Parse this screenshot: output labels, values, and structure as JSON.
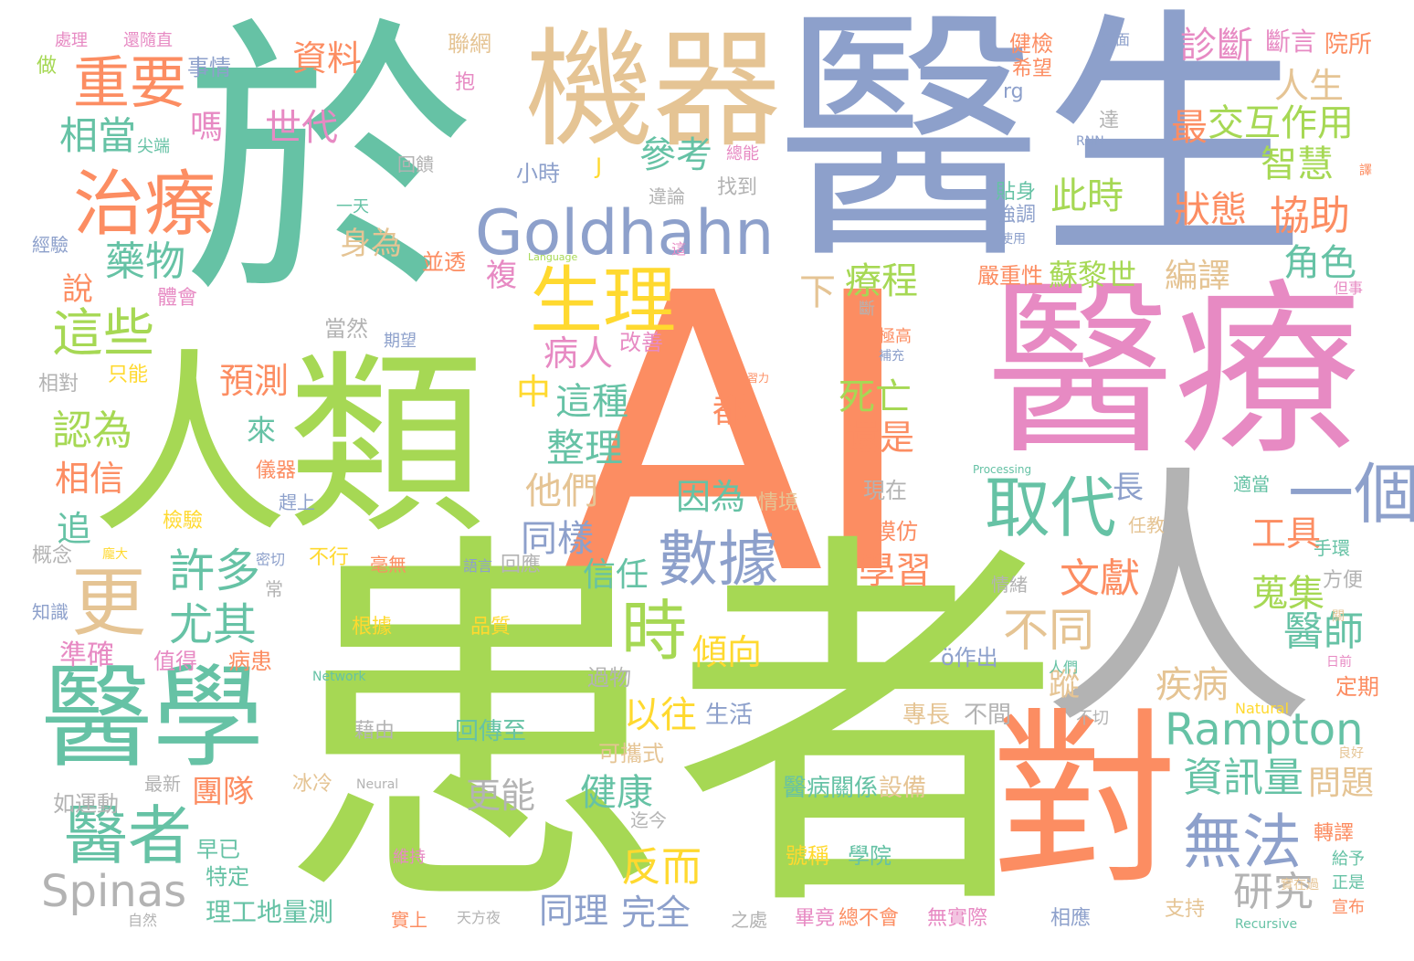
{
  "palette": {
    "teal": "#66c2a5",
    "orange": "#fc8d62",
    "blue": "#8da0cb",
    "pink": "#e78ac3",
    "green": "#a6d854",
    "yellow": "#ffd92f",
    "tan": "#e5c494",
    "gray": "#b3b3b3"
  },
  "words": {
    "ai": "AI",
    "huanzhe": "患者",
    "yu": "於",
    "yisheng": "醫生",
    "yiliao": "醫療",
    "renlei": "人類",
    "ren": "人",
    "jiqi": "機器",
    "yixue": "醫學",
    "dui": "對",
    "goldhahn": "Goldhahn",
    "rampton": "Rampton",
    "spinas": "Spinas",
    "zhiliao": "治療",
    "zhongyao": "重要",
    "shengli": "生理",
    "qudai": "取代",
    "shuju": "數據",
    "yige": "一個",
    "wufa": "無法",
    "yizhe": "醫者",
    "geng": "更",
    "shi": "時",
    "zheixie": "這些",
    "xuduo": "許多",
    "youqi": "尤其",
    "yaowu": "藥物",
    "xiangdang": "相當",
    "shidai": "世代",
    "ziliao": "資料",
    "zhenduan": "診斷",
    "duanyan": "斷言",
    "yuansuo": "院所",
    "rensheng": "人生",
    "jiaohu": "交互作用",
    "zui": "最",
    "zhihui": "智慧",
    "xiezhu": "協助",
    "zhuangtai": "狀態",
    "cishi": "此時",
    "cankao": "參考",
    "juese": "角色",
    "bianyi": "編譯",
    "sulishi": "蘇黎世",
    "yanzhong": "嚴重性",
    "liaocheng": "療程",
    "xia": "下",
    "bingren": "病人",
    "siwang": "死亡",
    "haishi": "還是",
    "zhezhong": "這種",
    "zhong": "中",
    "zhengli": "整理",
    "tamen": "他們",
    "yinwei": "因為",
    "tongyang": "同樣",
    "xinren": "信任",
    "xuexi": "學習",
    "wenxian": "文獻",
    "butong": "不同",
    "gongju": "工具",
    "souji": "蒐集",
    "yishi": "醫師",
    "jibing": "疾病",
    "zixunliang": "資訊量",
    "wenti": "問題",
    "yanjiu": "研究",
    "fan_er": "反而",
    "wanquan": "完全",
    "tongli": "同理",
    "jiankang": "健康",
    "gengneng": "更能",
    "yiwang": "以往",
    "qingxiang": "傾向",
    "renwei": "認為",
    "xiangxin": "相信",
    "yuce": "預測",
    "zhun_que": "準確",
    "tuandui": "團隊",
    "zhui": "追",
    "shuo": "說",
    "ma": "嗎",
    "shenwei": "身為",
    "fu": "複",
    "dou": "都",
    "lai": "來",
    "zhang": "長",
    "zong": "蹤",
    "yibingguan": "醫病關係",
    "shebei": "設備",
    "haocheng": "號稱",
    "xueyuan": "學院",
    "genju": "根據",
    "pinzhi": "品質",
    "huichuanzhi": "回傳至",
    "jieyou": "藉由",
    "shenghuo": "生活",
    "lilun": "理工地量測",
    "shishi": "事情",
    "chuli": "處理",
    "haisui": "還隨直",
    "zuo": "做",
    "bao": "抱",
    "lianwang": "聯網",
    "jianyan_top": "健檢",
    "xiwang": "希望",
    "rg": "rg",
    "da": "達",
    "rnn": "RNN",
    "zongneng": "總能",
    "jianduan": "尖端",
    "huikui": "回饋",
    "xiaoshi": "小時",
    "j": "J",
    "zhaodao": "找到",
    "tiesheng": "貼身",
    "qiangdiao": "強調",
    "shiyong": "使用",
    "yitian": "一天",
    "jingyan": "經驗",
    "language": "Language",
    "bingtou": "並透",
    "tihui": "體會",
    "dangran": "當然",
    "qiwang": "期望",
    "gaishan": "改善",
    "xiangdui": "相對",
    "zhineng": "只能",
    "jigao": "極高",
    "buchong": "補充",
    "processing": "Processing",
    "shidang": "適當",
    "renjiao": "任教",
    "shouhuan": "手環",
    "fangbian": "方便",
    "qingxu": "情緒",
    "ozuochu": "ö作出",
    "renmen": "人們",
    "network": "Network",
    "natural": "Natural",
    "guowu": "過物",
    "butong2": "不間",
    "zhuanchang": "專長",
    "buqie": "不切",
    "kexieshi": "可攜式",
    "neural": "Neural",
    "bingleng": "冰冷",
    "zuixin": "最新",
    "ruyundong": "如運動",
    "qijin": "迄今",
    "zaoyi": "早已",
    "teding": "特定",
    "ziran": "自然",
    "tianfangye": "天方夜",
    "zhichu": "之處",
    "weichi": "維持",
    "shishang": "實上",
    "bijing": "畢竟",
    "zongbuhui": "總不會",
    "wushiji": "無實際",
    "xiangying": "相應",
    "zhichi": "支持",
    "recursive": "Recursive",
    "xuanbu": "宣布",
    "zhuanyi": "轉譯",
    "geiyu": "給予",
    "zhengshi": "正是",
    "shizaiguo": "實在過",
    "lianghao": "良好",
    "dingqi": "定期",
    "riqian": "日前",
    "guan": "關",
    "yuyan": "語言",
    "huiying": "回應",
    "haowu": "毫無",
    "buxing": "不行",
    "mimie": "密切",
    "pangda": "龐大",
    "gainian": "概念",
    "zhishi": "知識",
    "zhide": "值得",
    "bingqian": "病患",
    "jianyan": "檢驗",
    "ganshang": "趕上",
    "yiqi": "儀器",
    "xianzai": "現在",
    "qingjing": "情境",
    "mofang": "模仿",
    "chang": "常",
    "danshi": "但事",
    "duan": "斷",
    "zhe": "這",
    "yiyi": "譯",
    "yaomian": "要面",
    "xilu": "習力",
    "weilun": "違論"
  }
}
